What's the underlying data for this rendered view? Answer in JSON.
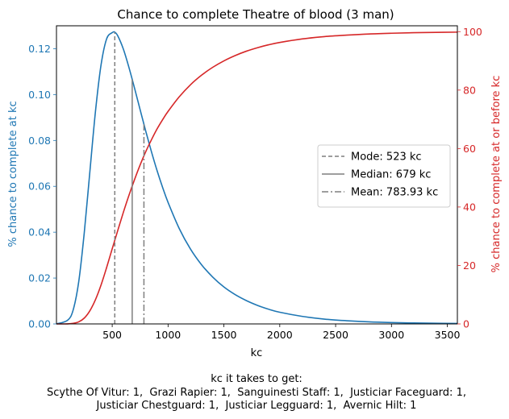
{
  "chart_data": {
    "type": "line",
    "title": "Chance to complete Theatre of blood (3 man)",
    "xlabel": "kc",
    "ylabel_left": "% chance to complete at kc",
    "ylabel_right": "% chance to complete at or before kc",
    "xlim": [
      1,
      3590
    ],
    "ylim_left": [
      0,
      0.13
    ],
    "ylim_right": [
      0,
      102
    ],
    "x_ticks": [
      500,
      1000,
      1500,
      2000,
      2500,
      3000,
      3500
    ],
    "y_ticks_left": [
      "0.00",
      "0.02",
      "0.04",
      "0.06",
      "0.08",
      "0.10",
      "0.12"
    ],
    "y_ticks_right": [
      "0",
      "20",
      "40",
      "60",
      "80",
      "100"
    ],
    "grid": false,
    "legend_position": "center-right",
    "series": [
      {
        "axis": "left",
        "color": "#1f77b4",
        "x": [
          1,
          100,
          150,
          200,
          250,
          300,
          350,
          400,
          450,
          500,
          523,
          550,
          600,
          650,
          700,
          750,
          800,
          850,
          900,
          950,
          1000,
          1100,
          1200,
          1300,
          1400,
          1500,
          1600,
          1700,
          1800,
          1900,
          2000,
          2200,
          2400,
          2600,
          2800,
          3000,
          3200,
          3400,
          3590
        ],
        "values": [
          0.0,
          0.0016,
          0.006,
          0.0183,
          0.0398,
          0.0664,
          0.0926,
          0.1129,
          0.1243,
          0.127,
          0.1272,
          0.1256,
          0.1198,
          0.1118,
          0.1028,
          0.0934,
          0.0841,
          0.0753,
          0.0671,
          0.0597,
          0.053,
          0.0416,
          0.0327,
          0.0258,
          0.0204,
          0.0161,
          0.0128,
          0.0102,
          0.0081,
          0.0064,
          0.0051,
          0.0033,
          0.0021,
          0.0014,
          0.0009,
          0.0006,
          0.0004,
          0.0003,
          0.0002
        ]
      },
      {
        "axis": "right",
        "color": "#d62728",
        "x": [
          1,
          100,
          150,
          200,
          250,
          300,
          350,
          400,
          450,
          500,
          550,
          600,
          650,
          700,
          750,
          800,
          850,
          900,
          950,
          1000,
          1100,
          1200,
          1300,
          1400,
          1500,
          1600,
          1700,
          1800,
          1900,
          2000,
          2200,
          2400,
          2600,
          2800,
          3000,
          3200,
          3400,
          3590
        ],
        "values": [
          0.0,
          0.03,
          0.2,
          0.7,
          2.0,
          4.5,
          8.3,
          13.3,
          19.3,
          25.7,
          32.0,
          38.2,
          44.0,
          49.4,
          54.4,
          58.9,
          62.9,
          66.6,
          69.8,
          72.7,
          77.7,
          81.8,
          85.1,
          87.8,
          90.0,
          91.8,
          93.3,
          94.5,
          95.5,
          96.3,
          97.5,
          98.3,
          98.8,
          99.2,
          99.45,
          99.63,
          99.75,
          99.83
        ]
      }
    ],
    "markers": [
      {
        "label": "Mode: 523 kc",
        "x": 523,
        "height_left": 0.1272,
        "style": "dashed"
      },
      {
        "label": "Median: 679 kc",
        "x": 679,
        "height_left": 0.1066,
        "style": "solid"
      },
      {
        "label": "Mean: 783.93 kc",
        "x": 783.93,
        "height_left": 0.087,
        "style": "dashdot"
      }
    ],
    "marker_color": "#7f7f7f",
    "left_axis_color": "#1f77b4",
    "right_axis_color": "#d62728"
  },
  "caption": {
    "line1": "kc it takes to get:",
    "line2": "Scythe Of Vitur: 1,  Grazi Rapier: 1,  Sanguinesti Staff: 1,  Justiciar Faceguard: 1,",
    "line3": "Justiciar Chestguard: 1,  Justiciar Legguard: 1,  Avernic Hilt: 1"
  }
}
